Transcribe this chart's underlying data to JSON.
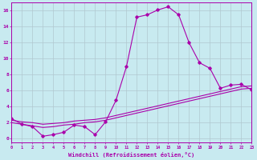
{
  "title": "",
  "xlabel": "Windchill (Refroidissement éolien,°C)",
  "ylabel": "",
  "background_color": "#c8eaf0",
  "grid_color": "#b0c8d0",
  "line_color": "#aa00aa",
  "x_min": 0,
  "x_max": 23,
  "y_min": -0.5,
  "y_max": 17,
  "x_ticks": [
    0,
    1,
    2,
    3,
    4,
    5,
    6,
    7,
    8,
    9,
    10,
    11,
    12,
    13,
    14,
    15,
    16,
    17,
    18,
    19,
    20,
    21,
    22,
    23
  ],
  "y_ticks": [
    0,
    2,
    4,
    6,
    8,
    10,
    12,
    14,
    16
  ],
  "series1_x": [
    0,
    1,
    2,
    3,
    4,
    5,
    6,
    7,
    8,
    9,
    10,
    11,
    12,
    13,
    14,
    15,
    16,
    17,
    18,
    19,
    20,
    21,
    22,
    23
  ],
  "series1_y": [
    2.5,
    1.8,
    1.5,
    0.3,
    0.5,
    0.8,
    1.7,
    1.5,
    0.5,
    2.1,
    4.8,
    9.0,
    15.2,
    15.5,
    16.1,
    16.5,
    15.5,
    12.0,
    9.5,
    8.8,
    6.3,
    6.7,
    6.8,
    6.1
  ],
  "series2_x": [
    0,
    1,
    2,
    3,
    4,
    5,
    6,
    7,
    8,
    9,
    10,
    11,
    12,
    13,
    14,
    15,
    16,
    17,
    18,
    19,
    20,
    21,
    22,
    23
  ],
  "series2_y": [
    2.3,
    2.1,
    2.0,
    1.8,
    1.9,
    2.0,
    2.2,
    2.3,
    2.4,
    2.6,
    2.9,
    3.2,
    3.5,
    3.8,
    4.1,
    4.4,
    4.7,
    5.0,
    5.3,
    5.6,
    5.9,
    6.2,
    6.5,
    6.6
  ],
  "series3_x": [
    0,
    1,
    2,
    3,
    4,
    5,
    6,
    7,
    8,
    9,
    10,
    11,
    12,
    13,
    14,
    15,
    16,
    17,
    18,
    19,
    20,
    21,
    22,
    23
  ],
  "series3_y": [
    2.0,
    1.8,
    1.6,
    1.4,
    1.5,
    1.7,
    1.8,
    2.0,
    2.1,
    2.3,
    2.6,
    2.9,
    3.2,
    3.5,
    3.8,
    4.1,
    4.4,
    4.7,
    5.0,
    5.3,
    5.6,
    5.9,
    6.2,
    6.3
  ]
}
